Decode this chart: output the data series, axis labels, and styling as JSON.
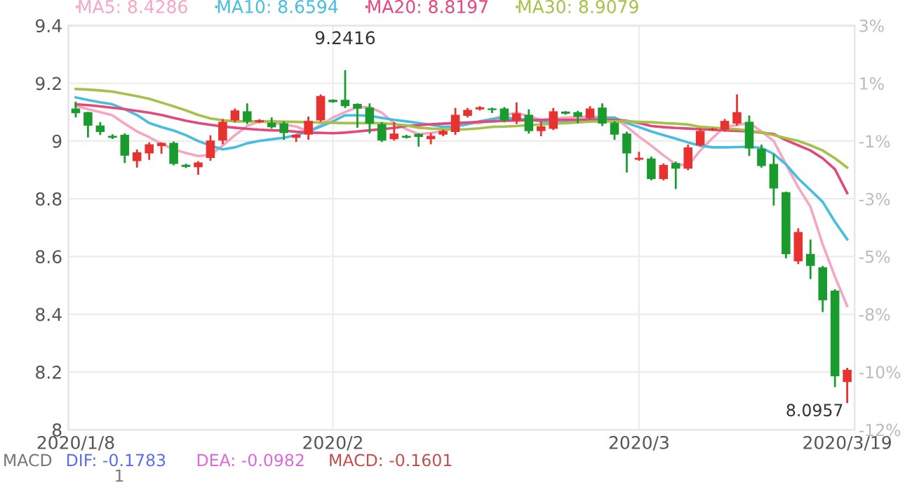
{
  "chart_data": {
    "type": "candlestick",
    "categories": [
      "2020/1/8",
      null,
      null,
      null,
      null,
      null,
      null,
      null,
      null,
      null,
      null,
      null,
      null,
      null,
      null,
      null,
      null,
      null,
      null,
      null,
      null,
      "2020/2",
      null,
      null,
      null,
      null,
      null,
      null,
      null,
      null,
      null,
      null,
      null,
      null,
      null,
      null,
      null,
      null,
      null,
      null,
      null,
      null,
      null,
      null,
      null,
      null,
      "2020/3",
      null,
      null,
      null,
      null,
      null,
      null,
      null,
      null,
      null,
      null,
      null,
      null,
      null,
      null,
      null,
      null,
      "2020/3/19"
    ],
    "ohlc": [
      [
        9.111,
        9.133,
        9.085,
        9.098
      ],
      [
        9.098,
        9.098,
        9.016,
        9.055
      ],
      [
        9.052,
        9.062,
        9.024,
        9.033
      ],
      [
        9.016,
        9.02,
        9.01,
        9.013
      ],
      [
        9.02,
        9.023,
        8.927,
        8.951
      ],
      [
        8.932,
        8.967,
        8.911,
        8.959
      ],
      [
        8.959,
        8.992,
        8.938,
        8.987
      ],
      [
        8.984,
        8.992,
        8.959,
        8.992
      ],
      [
        8.992,
        8.995,
        8.919,
        8.922
      ],
      [
        8.916,
        8.918,
        8.91,
        8.912
      ],
      [
        8.911,
        8.927,
        8.886,
        8.924
      ],
      [
        8.943,
        9.016,
        8.935,
        9.0
      ],
      [
        9.003,
        9.073,
        8.992,
        9.065
      ],
      [
        9.073,
        9.109,
        9.068,
        9.104
      ],
      [
        9.101,
        9.127,
        9.062,
        9.068
      ],
      [
        9.066,
        9.072,
        9.065,
        9.07
      ],
      [
        9.062,
        9.078,
        9.046,
        9.049
      ],
      [
        9.06,
        9.065,
        9.007,
        9.029
      ],
      [
        9.013,
        9.02,
        9.0,
        9.02
      ],
      [
        9.024,
        9.081,
        9.008,
        9.068
      ],
      [
        9.073,
        9.158,
        9.07,
        9.154
      ],
      [
        9.141,
        9.141,
        9.136,
        9.136
      ],
      [
        9.141,
        9.2416,
        9.117,
        9.122
      ],
      [
        9.127,
        9.127,
        9.049,
        9.114
      ],
      [
        9.114,
        9.127,
        9.029,
        9.062
      ],
      [
        9.057,
        9.062,
        9.0,
        9.003
      ],
      [
        9.008,
        9.062,
        9.005,
        9.024
      ],
      [
        9.016,
        9.018,
        9.012,
        9.013
      ],
      [
        9.023,
        9.023,
        8.984,
        9.016
      ],
      [
        9.008,
        9.024,
        8.992,
        9.016
      ],
      [
        9.024,
        9.036,
        9.02,
        9.033
      ],
      [
        9.033,
        9.111,
        9.024,
        9.089
      ],
      [
        9.089,
        9.111,
        9.085,
        9.106
      ],
      [
        9.111,
        9.117,
        9.109,
        9.115
      ],
      [
        9.111,
        9.112,
        9.1,
        9.109
      ],
      [
        9.111,
        9.114,
        9.068,
        9.073
      ],
      [
        9.073,
        9.13,
        9.062,
        9.094
      ],
      [
        9.089,
        9.106,
        9.029,
        9.036
      ],
      [
        9.036,
        9.065,
        9.02,
        9.049
      ],
      [
        9.044,
        9.111,
        9.041,
        9.101
      ],
      [
        9.1,
        9.1,
        9.094,
        9.096
      ],
      [
        9.098,
        9.101,
        9.065,
        9.085
      ],
      [
        9.081,
        9.117,
        9.078,
        9.111
      ],
      [
        9.114,
        9.127,
        9.055,
        9.062
      ],
      [
        9.062,
        9.065,
        9.007,
        9.024
      ],
      [
        9.024,
        9.029,
        8.894,
        8.959
      ],
      [
        8.937,
        8.959,
        8.935,
        8.94
      ],
      [
        8.938,
        8.943,
        8.867,
        8.87
      ],
      [
        8.87,
        8.919,
        8.867,
        8.915
      ],
      [
        8.922,
        8.925,
        8.837,
        8.906
      ],
      [
        8.906,
        8.984,
        8.902,
        8.976
      ],
      [
        8.987,
        9.041,
        8.984,
        9.033
      ],
      [
        9.039,
        9.042,
        9.038,
        9.041
      ],
      [
        9.041,
        9.073,
        9.036,
        9.068
      ],
      [
        9.062,
        9.158,
        9.057,
        9.098
      ],
      [
        9.065,
        9.085,
        8.951,
        8.976
      ],
      [
        8.971,
        8.984,
        8.911,
        8.915
      ],
      [
        8.919,
        8.951,
        8.78,
        8.837
      ],
      [
        8.821,
        8.821,
        8.597,
        8.61
      ],
      [
        8.585,
        8.694,
        8.577,
        8.683
      ],
      [
        8.607,
        8.655,
        8.525,
        8.569
      ],
      [
        8.561,
        8.564,
        8.411,
        8.45
      ],
      [
        8.48,
        8.483,
        8.151,
        8.187
      ],
      [
        8.167,
        8.211,
        8.0957,
        8.206
      ]
    ],
    "colors": [
      "#1a9b2e",
      "#1a9b2e",
      "#1a9b2e",
      "#1a9b2e",
      "#1a9b2e",
      "#e8322f",
      "#e8322f",
      "#e8322f",
      "#1a9b2e",
      "#1a9b2e",
      "#e8322f",
      "#e8322f",
      "#e8322f",
      "#e8322f",
      "#1a9b2e",
      "#e8322f",
      "#1a9b2e",
      "#1a9b2e",
      "#e8322f",
      "#e8322f",
      "#e8322f",
      "#1a9b2e",
      "#1a9b2e",
      "#1a9b2e",
      "#1a9b2e",
      "#1a9b2e",
      "#e8322f",
      "#1a9b2e",
      "#1a9b2e",
      "#e8322f",
      "#e8322f",
      "#e8322f",
      "#e8322f",
      "#e8322f",
      "#1a9b2e",
      "#1a9b2e",
      "#e8322f",
      "#1a9b2e",
      "#e8322f",
      "#e8322f",
      "#1a9b2e",
      "#1a9b2e",
      "#e8322f",
      "#1a9b2e",
      "#1a9b2e",
      "#1a9b2e",
      "#e8322f",
      "#1a9b2e",
      "#e8322f",
      "#1a9b2e",
      "#e8322f",
      "#e8322f",
      "#e8322f",
      "#e8322f",
      "#e8322f",
      "#1a9b2e",
      "#1a9b2e",
      "#1a9b2e",
      "#1a9b2e",
      "#e8322f",
      "#1a9b2e",
      "#1a9b2e",
      "#1a9b2e",
      "#e8322f"
    ],
    "series": [
      {
        "name": "MA5: 8.4286",
        "type": "line",
        "color": "#f4a6c3",
        "values": [
          9.122,
          9.11,
          9.1,
          9.089,
          9.06,
          9.033,
          9.013,
          8.99,
          8.971,
          8.958,
          8.948,
          8.951,
          8.984,
          9.02,
          9.052,
          9.068,
          9.064,
          9.057,
          9.05,
          9.033,
          9.055,
          9.081,
          9.1,
          9.117,
          9.117,
          9.098,
          9.062,
          9.041,
          9.024,
          9.028,
          9.033,
          9.057,
          9.062,
          9.062,
          9.075,
          9.089,
          9.098,
          9.085,
          9.073,
          9.077,
          9.081,
          9.083,
          9.085,
          9.083,
          9.081,
          9.049,
          9.015,
          8.984,
          8.95,
          8.919,
          8.915,
          8.967,
          9.01,
          9.049,
          9.055,
          9.062,
          9.033,
          9.0,
          8.919,
          8.84,
          8.772,
          8.642,
          8.53,
          8.4286
        ]
      },
      {
        "name": "MA10: 8.6594",
        "type": "line",
        "color": "#47bde0",
        "values": [
          9.151,
          9.142,
          9.134,
          9.127,
          9.11,
          9.09,
          9.062,
          9.048,
          9.036,
          9.02,
          9.0,
          8.984,
          8.971,
          8.978,
          8.992,
          9.0,
          9.006,
          9.011,
          9.02,
          9.033,
          9.05,
          9.068,
          9.089,
          9.089,
          9.087,
          9.08,
          9.073,
          9.068,
          9.062,
          9.056,
          9.049,
          9.05,
          9.058,
          9.068,
          9.076,
          9.081,
          9.078,
          9.073,
          9.068,
          9.062,
          9.068,
          9.073,
          9.076,
          9.079,
          9.081,
          9.062,
          9.048,
          9.033,
          9.02,
          9.008,
          8.995,
          8.984,
          8.978,
          8.978,
          8.979,
          8.98,
          8.976,
          8.955,
          8.919,
          8.87,
          8.83,
          8.789,
          8.72,
          8.6594
        ]
      },
      {
        "name": "MA20: 8.8197",
        "type": "line",
        "color": "#e3487b",
        "values": [
          9.127,
          9.124,
          9.12,
          9.115,
          9.11,
          9.104,
          9.098,
          9.09,
          9.08,
          9.07,
          9.062,
          9.056,
          9.05,
          9.046,
          9.042,
          9.039,
          9.037,
          9.036,
          9.032,
          9.029,
          9.028,
          9.027,
          9.029,
          9.033,
          9.037,
          9.041,
          9.045,
          9.052,
          9.055,
          9.058,
          9.06,
          9.062,
          9.064,
          9.066,
          9.068,
          9.07,
          9.071,
          9.072,
          9.073,
          9.073,
          9.073,
          9.073,
          9.073,
          9.073,
          9.073,
          9.07,
          9.062,
          9.052,
          9.048,
          9.045,
          9.043,
          9.041,
          9.039,
          9.037,
          9.035,
          9.033,
          9.029,
          9.024,
          9.003,
          8.985,
          8.967,
          8.94,
          8.902,
          8.8197
        ]
      },
      {
        "name": "MA30: 8.9079",
        "type": "line",
        "color": "#a4c24a",
        "values": [
          9.18,
          9.178,
          9.175,
          9.171,
          9.163,
          9.155,
          9.146,
          9.133,
          9.12,
          9.106,
          9.09,
          9.078,
          9.072,
          9.068,
          9.068,
          9.068,
          9.068,
          9.067,
          9.066,
          9.065,
          9.064,
          9.063,
          9.062,
          9.062,
          9.062,
          9.062,
          9.058,
          9.054,
          9.046,
          9.043,
          9.041,
          9.039,
          9.041,
          9.044,
          9.049,
          9.05,
          9.052,
          9.055,
          9.057,
          9.06,
          9.062,
          9.064,
          9.067,
          9.068,
          9.068,
          9.068,
          9.066,
          9.065,
          9.062,
          9.06,
          9.057,
          9.049,
          9.046,
          9.043,
          9.041,
          9.036,
          9.03,
          9.02,
          9.01,
          9.0,
          8.985,
          8.967,
          8.94,
          8.9079
        ]
      }
    ],
    "ylim": [
      8,
      9.4
    ],
    "yticks": [
      {
        "value": 8,
        "label": "8"
      },
      8.2,
      8.4,
      8.6,
      8.8,
      {
        "value": 9,
        "label": "9"
      },
      9.2,
      9.4
    ],
    "y2lim": [
      -12.09,
      3.3
    ],
    "y2ticks": [
      {
        "value": -12.09,
        "label": "-12%"
      },
      {
        "value": -9.89,
        "label": "-10%"
      },
      {
        "value": -7.69,
        "label": "-8%"
      },
      {
        "value": -5.49,
        "label": "-5%"
      },
      {
        "value": -3.3,
        "label": "-3%"
      },
      {
        "value": -1.1,
        "label": "-1%"
      },
      {
        "value": 1.1,
        "label": "1%"
      },
      {
        "value": 3.3,
        "label": "3%"
      }
    ],
    "grid": true,
    "legend": "top left",
    "annotations": [
      {
        "text": "9.2416",
        "y": 9.2416
      },
      "8.0957",
      "MACD",
      "DIF: -0.1783",
      "DEA: -0.0982",
      "MACD: -0.1601",
      "1"
    ]
  }
}
